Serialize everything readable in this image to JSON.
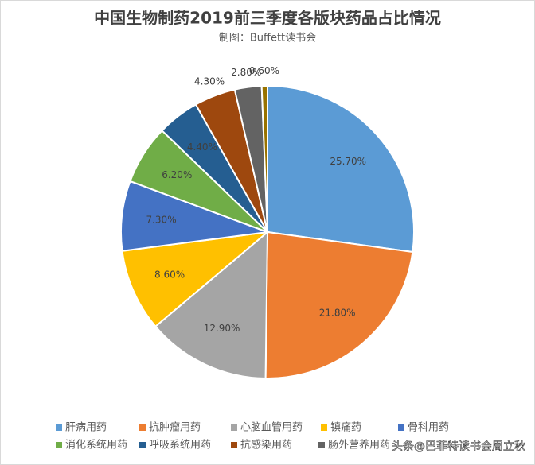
{
  "chart_data": {
    "type": "pie",
    "title": "中国生物制药2019前三季度各版块药品占比情况",
    "subtitle": "制图：Buffett读书会",
    "categories": [
      "肝病用药",
      "抗肿瘤用药",
      "心脑血管用药",
      "镇痛药",
      "骨科用药",
      "消化系统用药",
      "呼吸系统用药",
      "抗感染用药",
      "肠外营养用药",
      null
    ],
    "values": [
      25.7,
      21.8,
      12.9,
      8.6,
      7.3,
      6.2,
      4.4,
      4.3,
      2.8,
      0.6
    ],
    "value_labels": [
      "25.70%",
      "21.80%",
      "12.90%",
      "8.60%",
      "7.30%",
      "6.20%",
      "4.40%",
      "4.30%",
      "2.80%",
      "0.60%"
    ],
    "colors": [
      "#5b9bd5",
      "#ed7d31",
      "#a5a5a5",
      "#ffc000",
      "#4472c4",
      "#70ad47",
      "#255e91",
      "#9e480e",
      "#636363",
      "#997300"
    ],
    "watermark": "头条@巴菲特读书会周立秋"
  }
}
